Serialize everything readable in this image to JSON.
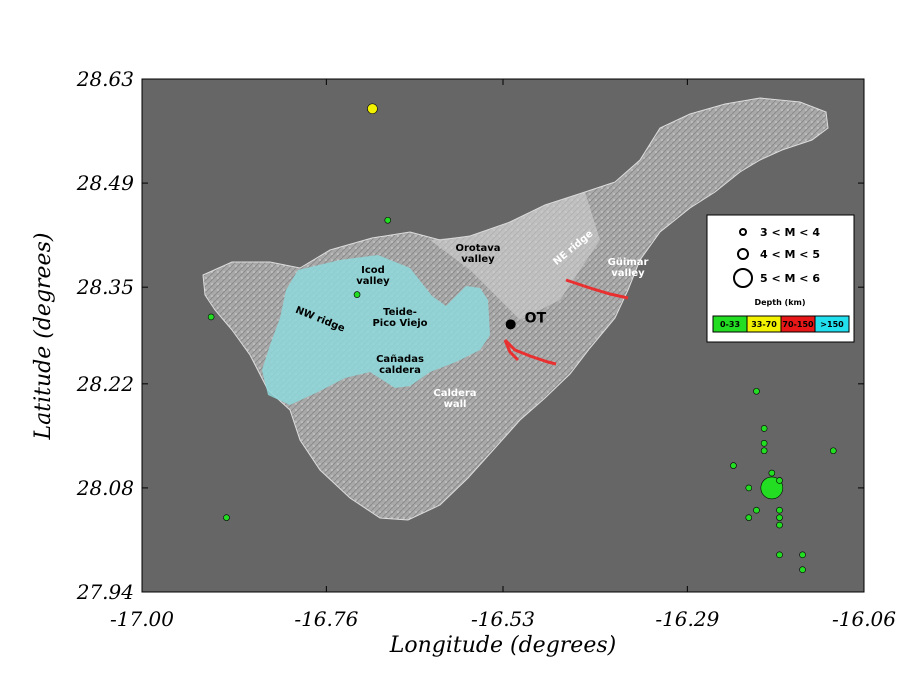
{
  "axes": {
    "xlabel": "Longitude (degrees)",
    "ylabel": "Latitude (degrees)",
    "xlim": [
      -17.0,
      -16.06
    ],
    "ylim": [
      27.94,
      28.63
    ],
    "xticks": [
      "-17.00",
      "-16.76",
      "-16.53",
      "-16.29",
      "-16.06"
    ],
    "yticks": [
      "28.63",
      "28.49",
      "28.35",
      "28.22",
      "28.08",
      "27.94"
    ],
    "xtick_values": [
      -17.0,
      -16.76,
      -16.53,
      -16.29,
      -16.06
    ],
    "ytick_values": [
      28.63,
      28.49,
      28.35,
      28.22,
      28.08,
      27.94
    ]
  },
  "colors": {
    "sea": "#666666",
    "island": "#b8b8b8",
    "ridge_overlay": "#8fd9dc",
    "fault": "#e83030",
    "depth_0_33": "#22dd22",
    "depth_33_70": "#f2f200",
    "depth_70_150": "#e81818",
    "depth_gt_150": "#22e0ee"
  },
  "map_labels": [
    {
      "id": "icod",
      "lines": [
        "Icod",
        "valley"
      ],
      "color": "#000000"
    },
    {
      "id": "orotava",
      "lines": [
        "Orotava",
        "valley"
      ],
      "color": "#000000"
    },
    {
      "id": "ne-ridge",
      "lines": [
        "NE ridge"
      ],
      "color": "#ffffff"
    },
    {
      "id": "guimar",
      "lines": [
        "Güimar",
        "valley"
      ],
      "color": "#ffffff"
    },
    {
      "id": "nw-ridge",
      "lines": [
        "NW ridge"
      ],
      "color": "#000000"
    },
    {
      "id": "teide",
      "lines": [
        "Teide-",
        "Pico Viejo"
      ],
      "color": "#000000"
    },
    {
      "id": "canadas",
      "lines": [
        "Cañadas",
        "caldera"
      ],
      "color": "#000000"
    },
    {
      "id": "caldera-wall",
      "lines": [
        "Caldera",
        "wall"
      ],
      "color": "#ffffff"
    }
  ],
  "station": {
    "label": "OT",
    "lon": -16.52,
    "lat": 28.3
  },
  "legend": {
    "magnitude": [
      "3 < M < 4",
      "4 < M < 5",
      "5 < M < 6"
    ],
    "depth_title": "Depth (km)",
    "depth_bins": [
      {
        "label": "0-33",
        "color": "#22dd22"
      },
      {
        "label": "33-70",
        "color": "#f2f200"
      },
      {
        "label": "70-150",
        "color": "#e81818"
      },
      {
        "label": ">150",
        "color": "#22e0ee"
      }
    ]
  },
  "earthquakes": [
    {
      "lon": -16.7,
      "lat": 28.59,
      "mag": "4-5",
      "depth": "33-70"
    },
    {
      "lon": -16.68,
      "lat": 28.44,
      "mag": "3-4",
      "depth": "0-33"
    },
    {
      "lon": -16.72,
      "lat": 28.34,
      "mag": "3-4",
      "depth": "0-33"
    },
    {
      "lon": -16.91,
      "lat": 28.31,
      "mag": "3-4",
      "depth": "0-33"
    },
    {
      "lon": -16.89,
      "lat": 28.04,
      "mag": "3-4",
      "depth": "0-33"
    },
    {
      "lon": -16.2,
      "lat": 28.21,
      "mag": "3-4",
      "depth": "0-33"
    },
    {
      "lon": -16.19,
      "lat": 28.16,
      "mag": "3-4",
      "depth": "0-33"
    },
    {
      "lon": -16.19,
      "lat": 28.14,
      "mag": "3-4",
      "depth": "0-33"
    },
    {
      "lon": -16.19,
      "lat": 28.13,
      "mag": "3-4",
      "depth": "0-33"
    },
    {
      "lon": -16.23,
      "lat": 28.11,
      "mag": "3-4",
      "depth": "0-33"
    },
    {
      "lon": -16.18,
      "lat": 28.1,
      "mag": "3-4",
      "depth": "0-33"
    },
    {
      "lon": -16.1,
      "lat": 28.13,
      "mag": "3-4",
      "depth": "0-33"
    },
    {
      "lon": -16.18,
      "lat": 28.08,
      "mag": "5-6",
      "depth": "0-33"
    },
    {
      "lon": -16.21,
      "lat": 28.08,
      "mag": "3-4",
      "depth": "0-33"
    },
    {
      "lon": -16.17,
      "lat": 28.09,
      "mag": "3-4",
      "depth": "0-33"
    },
    {
      "lon": -16.2,
      "lat": 28.05,
      "mag": "3-4",
      "depth": "0-33"
    },
    {
      "lon": -16.21,
      "lat": 28.04,
      "mag": "3-4",
      "depth": "0-33"
    },
    {
      "lon": -16.17,
      "lat": 28.05,
      "mag": "3-4",
      "depth": "0-33"
    },
    {
      "lon": -16.17,
      "lat": 28.04,
      "mag": "3-4",
      "depth": "0-33"
    },
    {
      "lon": -16.17,
      "lat": 28.03,
      "mag": "3-4",
      "depth": "0-33"
    },
    {
      "lon": -16.17,
      "lat": 27.99,
      "mag": "3-4",
      "depth": "0-33"
    },
    {
      "lon": -16.14,
      "lat": 27.99,
      "mag": "3-4",
      "depth": "0-33"
    },
    {
      "lon": -16.14,
      "lat": 27.97,
      "mag": "3-4",
      "depth": "0-33"
    }
  ]
}
